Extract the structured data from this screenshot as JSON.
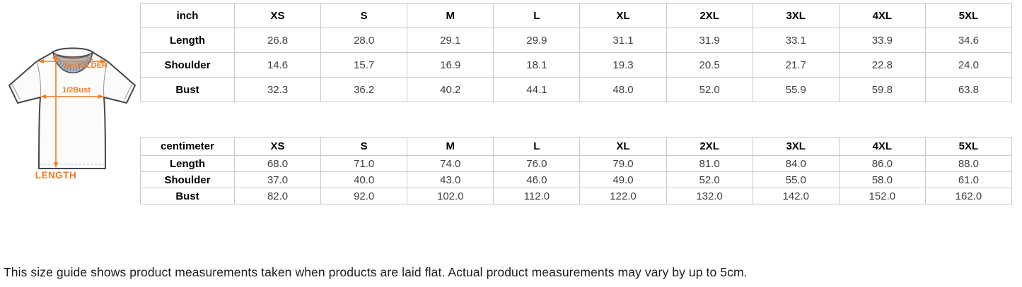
{
  "tshirt": {
    "shoulder_label": "SHOULDER",
    "bust_label": "1/2Bust",
    "length_label": "LENGTH",
    "accent_color": "#f47b20"
  },
  "inch_table": {
    "unit_header": "inch",
    "sizes": [
      "XS",
      "S",
      "M",
      "L",
      "XL",
      "2XL",
      "3XL",
      "4XL",
      "5XL"
    ],
    "rows": [
      {
        "label": "Length",
        "values": [
          "26.8",
          "28.0",
          "29.1",
          "29.9",
          "31.1",
          "31.9",
          "33.1",
          "33.9",
          "34.6"
        ]
      },
      {
        "label": "Shoulder",
        "values": [
          "14.6",
          "15.7",
          "16.9",
          "18.1",
          "19.3",
          "20.5",
          "21.7",
          "22.8",
          "24.0"
        ]
      },
      {
        "label": "Bust",
        "values": [
          "32.3",
          "36.2",
          "40.2",
          "44.1",
          "48.0",
          "52.0",
          "55.9",
          "59.8",
          "63.8"
        ]
      }
    ]
  },
  "cm_table": {
    "unit_header": "centimeter",
    "sizes": [
      "XS",
      "S",
      "M",
      "L",
      "XL",
      "2XL",
      "3XL",
      "4XL",
      "5XL"
    ],
    "rows": [
      {
        "label": "Length",
        "values": [
          "68.0",
          "71.0",
          "74.0",
          "76.0",
          "79.0",
          "81.0",
          "84.0",
          "86.0",
          "88.0"
        ]
      },
      {
        "label": "Shoulder",
        "values": [
          "37.0",
          "40.0",
          "43.0",
          "46.0",
          "49.0",
          "52.0",
          "55.0",
          "58.0",
          "61.0"
        ]
      },
      {
        "label": "Bust",
        "values": [
          "82.0",
          "92.0",
          "102.0",
          "112.0",
          "122.0",
          "132.0",
          "142.0",
          "152.0",
          "162.0"
        ]
      }
    ]
  },
  "note": "This size guide shows product measurements taken when products are laid flat. Actual product measurements may vary by up to 5cm."
}
